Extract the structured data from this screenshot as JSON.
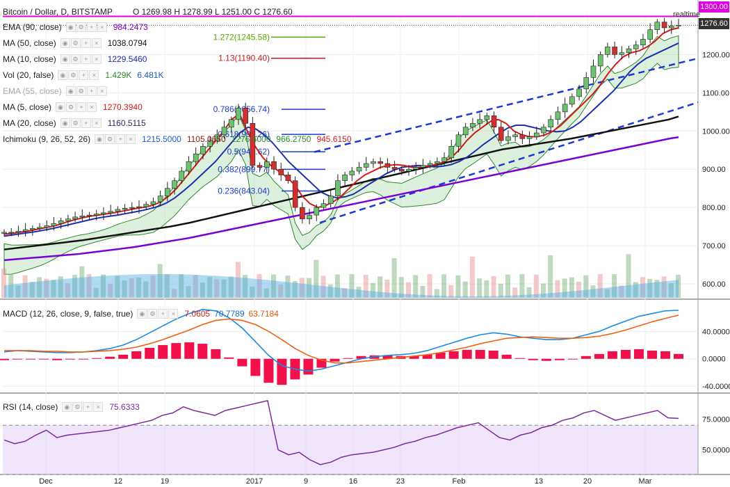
{
  "header": {
    "symbol_title": "Bitcoin / Dollar, D, BITSTAMP",
    "ohlc": "O 1269.98 H 1278.99 L 1251.00 C 1276.60",
    "realtime_label": "realtime"
  },
  "legend": [
    {
      "name": "EMA (90, close)",
      "values": [
        "984.2473"
      ],
      "colors": [
        "#7b00d4"
      ]
    },
    {
      "name": "MA (50, close)",
      "values": [
        "1038.0794"
      ],
      "colors": [
        "#111111"
      ]
    },
    {
      "name": "MA (10, close)",
      "values": [
        "1229.5460"
      ],
      "colors": [
        "#1a2fb0"
      ]
    },
    {
      "name": "Vol (20, false)",
      "values": [
        "1.429K",
        "6.481K"
      ],
      "colors": [
        "#2a8a2a",
        "#1a5ab0"
      ]
    },
    {
      "name": "EMA (55, close)",
      "values": [],
      "colors": []
    },
    {
      "name": "MA (5, close)",
      "values": [
        "1270.3940"
      ],
      "colors": [
        "#d21a1a"
      ]
    },
    {
      "name": "MA (20, close)",
      "values": [
        "1160.5115"
      ],
      "colors": [
        "#2a2a6a"
      ]
    },
    {
      "name": "Ichimoku (9, 26, 52, 26)",
      "values": [
        "1215.5000",
        "1105.0650",
        "1276.6000",
        "966.2750",
        "945.6150"
      ],
      "colors": [
        "#1a5ad0",
        "#8a1a1a",
        "#2a8a2a",
        "#2a8a2a",
        "#d21a1a"
      ]
    }
  ],
  "price_tags": {
    "top": "1300.00",
    "current": "1276.60"
  },
  "fib_labels": [
    {
      "text": "1.272(1245.58)",
      "color": "#55a800"
    },
    {
      "text": "1.13(1190.40)",
      "color": "#c41a1a"
    },
    {
      "text": "0.786(1056.74)",
      "color": "#1a3ad0"
    },
    {
      "text": "0.618(991.26)",
      "color": "#1a3ad0"
    },
    {
      "text": "0.5(945.62)",
      "color": "#1a3ad0"
    },
    {
      "text": "0.382(899.77)",
      "color": "#1a3ad0"
    },
    {
      "text": "0.236(843.04)",
      "color": "#1a3ad0"
    }
  ],
  "macd_legend": {
    "name": "MACD (12, 26, close, 9, false, true)",
    "values": [
      "7.0605",
      "70.7789",
      "63.7184"
    ],
    "colors": [
      "#d21a1a",
      "#1a6ad0",
      "#e85a00"
    ]
  },
  "rsi_legend": {
    "name": "RSI (14, close)",
    "values": [
      "75.6333"
    ],
    "colors": [
      "#7a2aa0"
    ]
  },
  "chart_data": [
    {
      "type": "candlestick",
      "title": "Bitcoin / Dollar, D, BITSTAMP",
      "x_tick_labels": [
        "Dec",
        "12",
        "19",
        "2017",
        "9",
        "16",
        "23",
        "Feb",
        "13",
        "20",
        "Mar"
      ],
      "y_tick_labels": [
        "600.00",
        "700.00",
        "800.00",
        "900.00",
        "1000.00",
        "1100.00",
        "1200.00"
      ],
      "ylim": [
        560,
        1310
      ],
      "close_path": [
        735,
        735,
        738,
        742,
        745,
        748,
        752,
        758,
        765,
        770,
        775,
        778,
        780,
        783,
        786,
        790,
        795,
        798,
        800,
        802,
        808,
        815,
        830,
        850,
        870,
        895,
        920,
        940,
        960,
        975,
        990,
        1010,
        1030,
        1060,
        1020,
        910,
        905,
        920,
        900,
        885,
        870,
        800,
        770,
        780,
        800,
        810,
        830,
        870,
        885,
        895,
        905,
        915,
        920,
        915,
        905,
        900,
        895,
        900,
        905,
        910,
        915,
        920,
        930,
        960,
        990,
        1010,
        1020,
        1030,
        1040,
        1010,
        975,
        985,
        990,
        980,
        985,
        995,
        1010,
        1030,
        1050,
        1070,
        1090,
        1110,
        1140,
        1170,
        1200,
        1220,
        1200,
        1205,
        1215,
        1225,
        1240,
        1265,
        1285,
        1270,
        1275,
        1276.6
      ],
      "ma5": [
        730,
        732,
        735,
        738,
        742,
        746,
        750,
        755,
        762,
        768,
        773,
        777,
        780,
        783,
        786,
        790,
        794,
        798,
        801,
        806,
        815,
        830,
        850,
        875,
        900,
        925,
        950,
        975,
        1000,
        1030,
        1045,
        1000,
        960,
        930,
        910,
        895,
        880,
        860,
        830,
        810,
        800,
        805,
        815,
        830,
        850,
        870,
        885,
        895,
        905,
        910,
        912,
        910,
        905,
        905,
        908,
        912,
        918,
        930,
        950,
        975,
        995,
        1010,
        1025,
        1030,
        1020,
        1000,
        990,
        985,
        985,
        990,
        1000,
        1015,
        1035,
        1055,
        1075,
        1095,
        1120,
        1150,
        1175,
        1195,
        1205,
        1210,
        1220,
        1235,
        1255,
        1265,
        1270
      ],
      "ma10": [
        725,
        728,
        731,
        734,
        737,
        741,
        745,
        750,
        755,
        760,
        765,
        770,
        774,
        777,
        780,
        784,
        788,
        792,
        797,
        803,
        812,
        825,
        842,
        860,
        880,
        900,
        920,
        945,
        970,
        995,
        1010,
        1005,
        990,
        970,
        945,
        920,
        900,
        880,
        860,
        840,
        830,
        825,
        828,
        835,
        848,
        862,
        875,
        888,
        898,
        905,
        908,
        910,
        908,
        906,
        908,
        912,
        920,
        932,
        948,
        965,
        980,
        995,
        1008,
        1015,
        1015,
        1010,
        1005,
        1000,
        998,
        1000,
        1010,
        1025,
        1045,
        1065,
        1085,
        1105,
        1130,
        1155,
        1175,
        1190,
        1200,
        1210,
        1220,
        1230
      ],
      "ma50": [
        690,
        693,
        696,
        699,
        702,
        705,
        708,
        711,
        714,
        718,
        722,
        726,
        730,
        734,
        738,
        742,
        746,
        750,
        755,
        760,
        766,
        772,
        778,
        784,
        790,
        796,
        802,
        808,
        814,
        820,
        826,
        832,
        838,
        844,
        850,
        856,
        862,
        868,
        874,
        880,
        886,
        892,
        898,
        904,
        910,
        916,
        922,
        928,
        934,
        940,
        946,
        952,
        956,
        960,
        964,
        968,
        972,
        976,
        980,
        985,
        990,
        995,
        1000,
        1005,
        1010,
        1015,
        1020,
        1025,
        1030,
        1038
      ],
      "ema90": [
        662,
        664,
        666,
        668,
        670,
        672,
        674,
        676,
        678,
        681,
        684,
        687,
        690,
        693,
        696,
        700,
        704,
        708,
        712,
        716,
        720,
        725,
        730,
        735,
        740,
        745,
        750,
        755,
        760,
        765,
        770,
        775,
        780,
        785,
        790,
        795,
        800,
        805,
        810,
        815,
        820,
        825,
        830,
        835,
        840,
        845,
        850,
        855,
        860,
        865,
        870,
        875,
        880,
        885,
        890,
        895,
        900,
        905,
        910,
        915,
        920,
        925,
        930,
        935,
        940,
        945,
        950,
        955,
        960,
        965,
        970,
        975,
        980,
        984
      ],
      "volume_series": [
        "Vol",
        "Vol MA"
      ],
      "volume_ma_level": "6.481K",
      "volume_last": "1.429K"
    },
    {
      "type": "line",
      "title": "MACD (12, 26, close, 9, false, true)",
      "y_tick_labels": [
        "40.0000",
        "0.0000",
        "-40.0000"
      ],
      "ylim": [
        -50,
        85
      ],
      "series": [
        {
          "name": "MACD",
          "values": [
            10,
            12,
            11,
            10,
            9,
            9,
            10,
            12,
            15,
            20,
            28,
            38,
            48,
            58,
            66,
            72,
            70,
            60,
            45,
            25,
            5,
            -10,
            -15,
            -18,
            -15,
            -10,
            -5,
            0,
            3,
            5,
            6,
            8,
            12,
            18,
            24,
            30,
            35,
            38,
            36,
            32,
            30,
            28,
            28,
            30,
            35,
            40,
            48,
            55,
            62,
            66,
            70,
            70.8
          ]
        },
        {
          "name": "Signal",
          "values": [
            12,
            12,
            12,
            11,
            11,
            10,
            10,
            11,
            12,
            14,
            17,
            22,
            28,
            35,
            42,
            50,
            56,
            58,
            56,
            50,
            40,
            28,
            15,
            5,
            -2,
            -6,
            -6,
            -4,
            -2,
            0,
            2,
            4,
            6,
            9,
            13,
            17,
            22,
            26,
            30,
            31,
            32,
            31,
            30,
            30,
            31,
            33,
            37,
            42,
            48,
            54,
            59,
            63.7
          ]
        },
        {
          "name": "Histogram",
          "values": [
            -2,
            0,
            -1,
            -1,
            -2,
            -1,
            0,
            1,
            3,
            6,
            11,
            16,
            20,
            23,
            24,
            22,
            14,
            2,
            -11,
            -25,
            -35,
            -38,
            -30,
            -23,
            -13,
            -4,
            1,
            4,
            5,
            5,
            4,
            4,
            6,
            9,
            11,
            13,
            13,
            12,
            6,
            1,
            -2,
            -3,
            -2,
            0,
            4,
            7,
            11,
            13,
            14,
            12,
            11,
            7.06
          ]
        }
      ]
    },
    {
      "type": "line",
      "title": "RSI (14, close)",
      "y_tick_labels": [
        "75.0000",
        "50.0000"
      ],
      "ylim": [
        30,
        95
      ],
      "band": [
        30,
        70
      ],
      "series": [
        {
          "name": "RSI",
          "values": [
            58,
            55,
            57,
            62,
            66,
            60,
            62,
            63,
            64,
            65,
            66,
            68,
            70,
            72,
            74,
            78,
            80,
            85,
            82,
            80,
            78,
            82,
            84,
            86,
            88,
            90,
            50,
            46,
            48,
            42,
            38,
            40,
            44,
            46,
            47,
            48,
            50,
            52,
            55,
            57,
            60,
            62,
            65,
            68,
            70,
            72,
            66,
            60,
            58,
            62,
            64,
            68,
            70,
            74,
            76,
            80,
            82,
            78,
            74,
            76,
            78,
            80,
            82,
            76,
            75.6
          ]
        }
      ]
    }
  ]
}
